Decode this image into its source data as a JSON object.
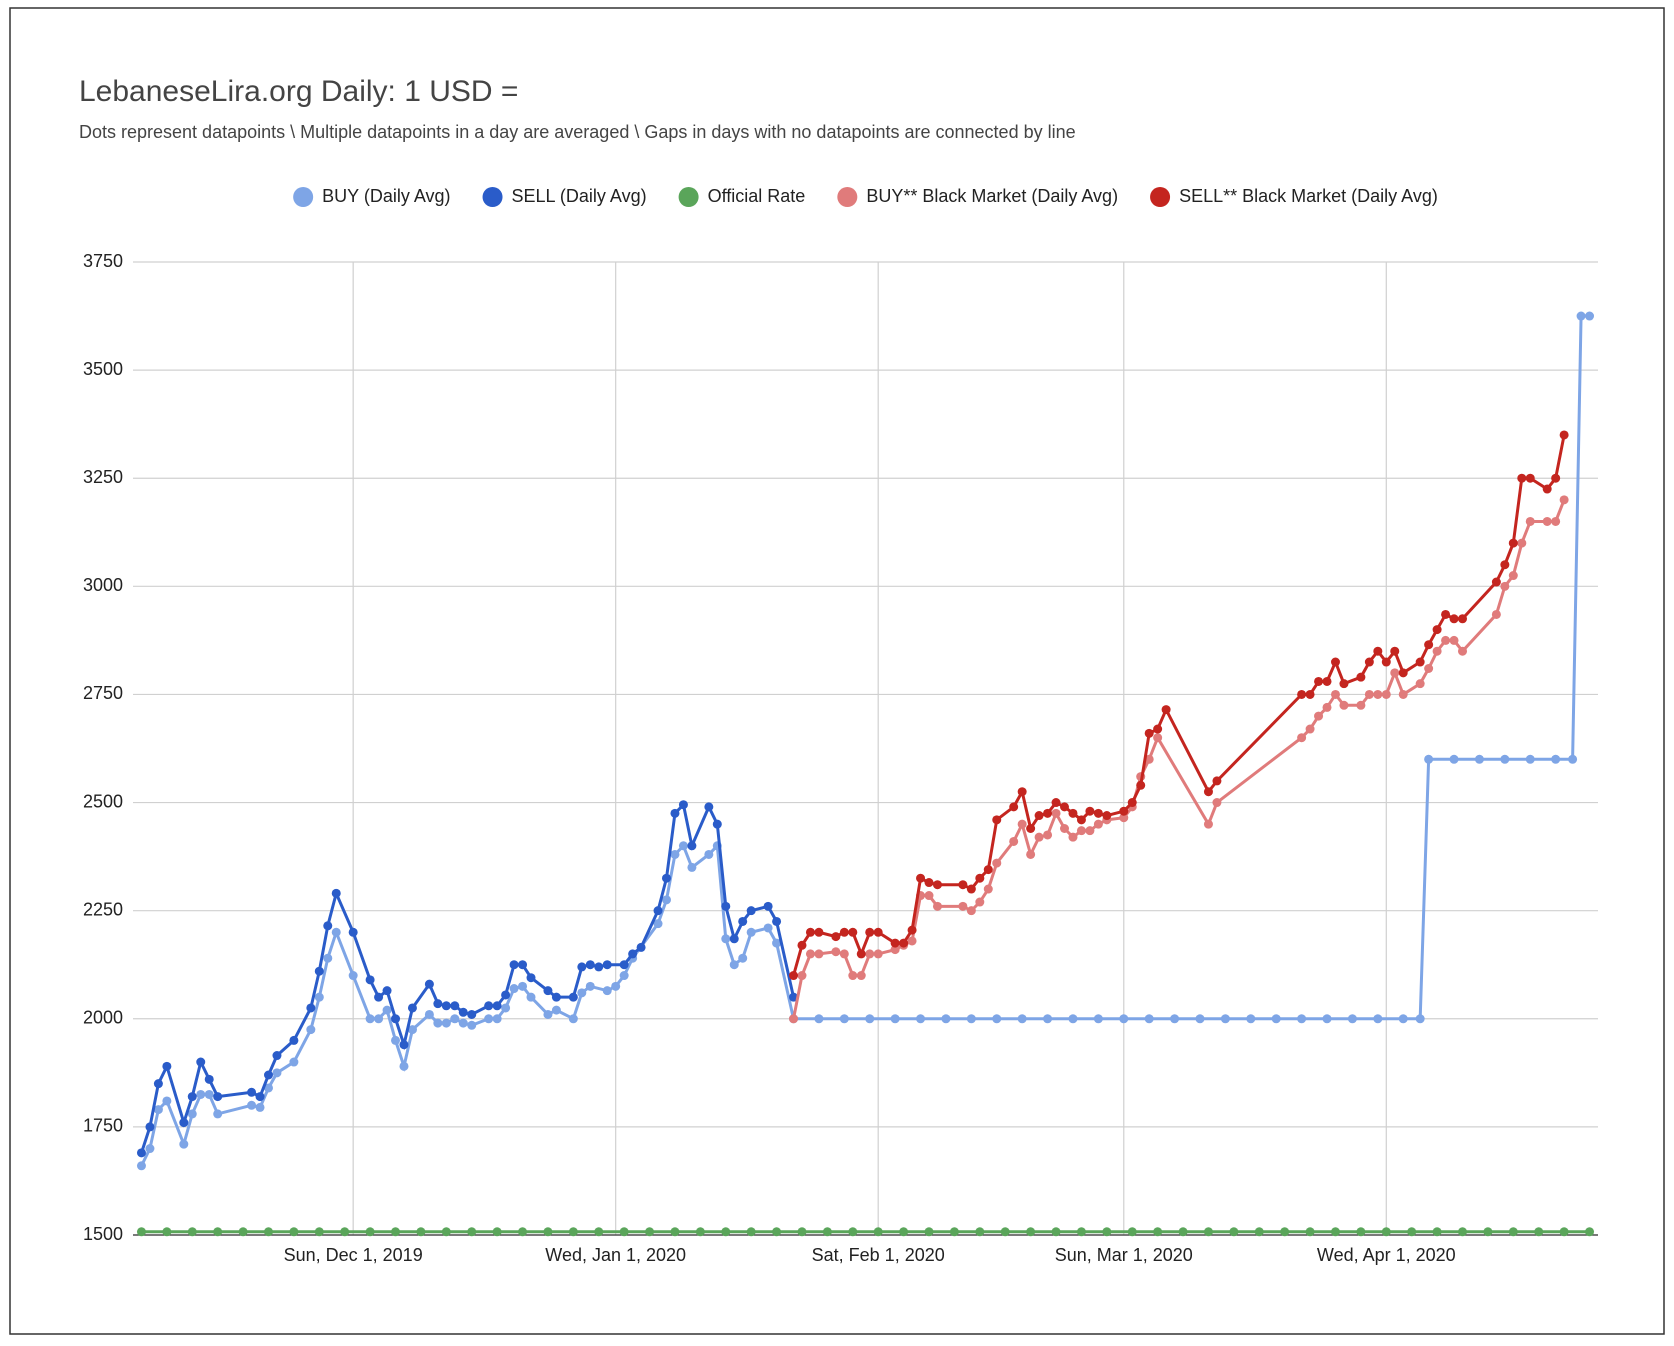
{
  "chart_data": {
    "type": "line",
    "title": "LebaneseLira.org Daily: 1 USD =",
    "subtitle": "Dots represent datapoints \\ Multiple datapoints in a day are averaged \\ Gaps in days with no datapoints are connected by line",
    "xlim": [
      "2019-11-05",
      "2020-04-26"
    ],
    "xticks": [
      {
        "value": "2019-12-01",
        "label": "Sun, Dec 1, 2019"
      },
      {
        "value": "2020-01-01",
        "label": "Wed, Jan 1, 2020"
      },
      {
        "value": "2020-02-01",
        "label": "Sat, Feb 1, 2020"
      },
      {
        "value": "2020-03-01",
        "label": "Sun, Mar 1, 2020"
      },
      {
        "value": "2020-04-01",
        "label": "Wed, Apr 1, 2020"
      }
    ],
    "ylim": [
      1500,
      3750
    ],
    "yticks": [
      1500,
      1750,
      2000,
      2250,
      2500,
      2750,
      3000,
      3250,
      3500,
      3750
    ],
    "grid": true,
    "legend": "top",
    "series": [
      {
        "name": "BUY (Daily Avg)",
        "color": "#7ea5e6",
        "x": [
          "2019-11-06",
          "2019-11-07",
          "2019-11-08",
          "2019-11-09",
          "2019-11-11",
          "2019-11-12",
          "2019-11-13",
          "2019-11-14",
          "2019-11-15",
          "2019-11-19",
          "2019-11-20",
          "2019-11-21",
          "2019-11-22",
          "2019-11-24",
          "2019-11-26",
          "2019-11-27",
          "2019-11-28",
          "2019-11-29",
          "2019-12-01",
          "2019-12-03",
          "2019-12-04",
          "2019-12-05",
          "2019-12-06",
          "2019-12-07",
          "2019-12-08",
          "2019-12-10",
          "2019-12-11",
          "2019-12-12",
          "2019-12-13",
          "2019-12-14",
          "2019-12-15",
          "2019-12-17",
          "2019-12-18",
          "2019-12-19",
          "2019-12-20",
          "2019-12-21",
          "2019-12-22",
          "2019-12-24",
          "2019-12-25",
          "2019-12-27",
          "2019-12-28",
          "2019-12-29",
          "2019-12-31",
          "2020-01-01",
          "2020-01-02",
          "2020-01-03",
          "2020-01-06",
          "2020-01-07",
          "2020-01-08",
          "2020-01-09",
          "2020-01-10",
          "2020-01-12",
          "2020-01-13",
          "2020-01-14",
          "2020-01-15",
          "2020-01-16",
          "2020-01-17",
          "2020-01-19",
          "2020-01-20",
          "2020-01-22",
          "2020-01-25",
          "2020-01-28",
          "2020-01-31",
          "2020-02-03",
          "2020-02-06",
          "2020-02-09",
          "2020-02-12",
          "2020-02-15",
          "2020-02-18",
          "2020-02-21",
          "2020-02-24",
          "2020-02-27",
          "2020-03-01",
          "2020-03-04",
          "2020-03-07",
          "2020-03-10",
          "2020-03-13",
          "2020-03-16",
          "2020-03-19",
          "2020-03-22",
          "2020-03-25",
          "2020-03-28",
          "2020-03-31",
          "2020-04-03",
          "2020-04-05",
          "2020-04-06",
          "2020-04-09",
          "2020-04-12",
          "2020-04-15",
          "2020-04-18",
          "2020-04-21",
          "2020-04-23",
          "2020-04-24",
          "2020-04-25"
        ],
        "values": [
          1660,
          1700,
          1790,
          1810,
          1710,
          1780,
          1825,
          1825,
          1780,
          1800,
          1795,
          1840,
          1875,
          1900,
          1975,
          2050,
          2140,
          2200,
          2100,
          2000,
          2000,
          2020,
          1950,
          1890,
          1975,
          2010,
          1990,
          1990,
          2000,
          1990,
          1985,
          2000,
          2000,
          2025,
          2070,
          2075,
          2050,
          2010,
          2020,
          2000,
          2060,
          2075,
          2065,
          2075,
          2100,
          2140,
          2220,
          2275,
          2380,
          2400,
          2350,
          2380,
          2400,
          2185,
          2125,
          2140,
          2200,
          2210,
          2175,
          2000,
          2000,
          2000,
          2000,
          2000,
          2000,
          2000,
          2000,
          2000,
          2000,
          2000,
          2000,
          2000,
          2000,
          2000,
          2000,
          2000,
          2000,
          2000,
          2000,
          2000,
          2000,
          2000,
          2000,
          2000,
          2000,
          2600,
          2600,
          2600,
          2600,
          2600,
          2600,
          2600,
          3625,
          3625
        ]
      },
      {
        "name": "SELL (Daily Avg)",
        "color": "#2a5cc9",
        "x": [
          "2019-11-06",
          "2019-11-07",
          "2019-11-08",
          "2019-11-09",
          "2019-11-11",
          "2019-11-12",
          "2019-11-13",
          "2019-11-14",
          "2019-11-15",
          "2019-11-19",
          "2019-11-20",
          "2019-11-21",
          "2019-11-22",
          "2019-11-24",
          "2019-11-26",
          "2019-11-27",
          "2019-11-28",
          "2019-11-29",
          "2019-12-01",
          "2019-12-03",
          "2019-12-04",
          "2019-12-05",
          "2019-12-06",
          "2019-12-07",
          "2019-12-08",
          "2019-12-10",
          "2019-12-11",
          "2019-12-12",
          "2019-12-13",
          "2019-12-14",
          "2019-12-15",
          "2019-12-17",
          "2019-12-18",
          "2019-12-19",
          "2019-12-20",
          "2019-12-21",
          "2019-12-22",
          "2019-12-24",
          "2019-12-25",
          "2019-12-27",
          "2019-12-28",
          "2019-12-29",
          "2019-12-30",
          "2019-12-31",
          "2020-01-02",
          "2020-01-03",
          "2020-01-04",
          "2020-01-06",
          "2020-01-07",
          "2020-01-08",
          "2020-01-09",
          "2020-01-10",
          "2020-01-12",
          "2020-01-13",
          "2020-01-14",
          "2020-01-15",
          "2020-01-16",
          "2020-01-17",
          "2020-01-19",
          "2020-01-20",
          "2020-01-22"
        ],
        "values": [
          1690,
          1750,
          1850,
          1890,
          1760,
          1820,
          1900,
          1860,
          1820,
          1830,
          1820,
          1870,
          1915,
          1950,
          2025,
          2110,
          2215,
          2290,
          2200,
          2090,
          2050,
          2065,
          2000,
          1940,
          2025,
          2080,
          2035,
          2030,
          2030,
          2015,
          2010,
          2030,
          2030,
          2055,
          2125,
          2125,
          2095,
          2065,
          2050,
          2050,
          2120,
          2125,
          2120,
          2125,
          2125,
          2150,
          2165,
          2250,
          2325,
          2475,
          2495,
          2400,
          2490,
          2450,
          2260,
          2185,
          2225,
          2250,
          2260,
          2225,
          2050
        ]
      },
      {
        "name": "Official Rate",
        "color": "#5aa55a",
        "x": [
          "2019-11-06",
          "2019-11-09",
          "2019-11-12",
          "2019-11-15",
          "2019-11-18",
          "2019-11-21",
          "2019-11-24",
          "2019-11-27",
          "2019-11-30",
          "2019-12-03",
          "2019-12-06",
          "2019-12-09",
          "2019-12-12",
          "2019-12-15",
          "2019-12-18",
          "2019-12-21",
          "2019-12-24",
          "2019-12-27",
          "2019-12-30",
          "2020-01-02",
          "2020-01-05",
          "2020-01-08",
          "2020-01-11",
          "2020-01-14",
          "2020-01-17",
          "2020-01-20",
          "2020-01-23",
          "2020-01-26",
          "2020-01-29",
          "2020-02-01",
          "2020-02-04",
          "2020-02-07",
          "2020-02-10",
          "2020-02-13",
          "2020-02-16",
          "2020-02-19",
          "2020-02-22",
          "2020-02-25",
          "2020-02-28",
          "2020-03-02",
          "2020-03-05",
          "2020-03-08",
          "2020-03-11",
          "2020-03-14",
          "2020-03-17",
          "2020-03-20",
          "2020-03-23",
          "2020-03-26",
          "2020-03-29",
          "2020-04-01",
          "2020-04-04",
          "2020-04-07",
          "2020-04-10",
          "2020-04-13",
          "2020-04-16",
          "2020-04-19",
          "2020-04-22",
          "2020-04-25"
        ],
        "values": [
          1507.5,
          1507.5,
          1507.5,
          1507.5,
          1507.5,
          1507.5,
          1507.5,
          1507.5,
          1507.5,
          1507.5,
          1507.5,
          1507.5,
          1507.5,
          1507.5,
          1507.5,
          1507.5,
          1507.5,
          1507.5,
          1507.5,
          1507.5,
          1507.5,
          1507.5,
          1507.5,
          1507.5,
          1507.5,
          1507.5,
          1507.5,
          1507.5,
          1507.5,
          1507.5,
          1507.5,
          1507.5,
          1507.5,
          1507.5,
          1507.5,
          1507.5,
          1507.5,
          1507.5,
          1507.5,
          1507.5,
          1507.5,
          1507.5,
          1507.5,
          1507.5,
          1507.5,
          1507.5,
          1507.5,
          1507.5,
          1507.5,
          1507.5,
          1507.5,
          1507.5,
          1507.5,
          1507.5,
          1507.5,
          1507.5,
          1507.5,
          1507.5
        ]
      },
      {
        "name": "BUY** Black Market (Daily Avg)",
        "color": "#e07b7b",
        "x": [
          "2020-01-22",
          "2020-01-23",
          "2020-01-24",
          "2020-01-25",
          "2020-01-27",
          "2020-01-28",
          "2020-01-29",
          "2020-01-30",
          "2020-01-31",
          "2020-02-01",
          "2020-02-03",
          "2020-02-04",
          "2020-02-05",
          "2020-02-06",
          "2020-02-07",
          "2020-02-08",
          "2020-02-11",
          "2020-02-12",
          "2020-02-13",
          "2020-02-14",
          "2020-02-15",
          "2020-02-17",
          "2020-02-18",
          "2020-02-19",
          "2020-02-20",
          "2020-02-21",
          "2020-02-22",
          "2020-02-23",
          "2020-02-24",
          "2020-02-25",
          "2020-02-26",
          "2020-02-27",
          "2020-02-28",
          "2020-03-01",
          "2020-03-02",
          "2020-03-03",
          "2020-03-04",
          "2020-03-05",
          "2020-03-11",
          "2020-03-12",
          "2020-03-22",
          "2020-03-23",
          "2020-03-24",
          "2020-03-25",
          "2020-03-26",
          "2020-03-27",
          "2020-03-29",
          "2020-03-30",
          "2020-03-31",
          "2020-04-01",
          "2020-04-02",
          "2020-04-03",
          "2020-04-05",
          "2020-04-06",
          "2020-04-07",
          "2020-04-08",
          "2020-04-09",
          "2020-04-10",
          "2020-04-14",
          "2020-04-15",
          "2020-04-16",
          "2020-04-17",
          "2020-04-18",
          "2020-04-20",
          "2020-04-21",
          "2020-04-22"
        ],
        "values": [
          2000,
          2100,
          2150,
          2150,
          2155,
          2150,
          2100,
          2100,
          2150,
          2150,
          2160,
          2170,
          2180,
          2285,
          2285,
          2260,
          2260,
          2250,
          2270,
          2300,
          2360,
          2410,
          2450,
          2380,
          2420,
          2425,
          2475,
          2440,
          2420,
          2435,
          2435,
          2450,
          2460,
          2465,
          2490,
          2560,
          2600,
          2650,
          2450,
          2500,
          2650,
          2670,
          2700,
          2720,
          2750,
          2725,
          2725,
          2750,
          2750,
          2750,
          2800,
          2750,
          2775,
          2810,
          2850,
          2875,
          2875,
          2850,
          2935,
          3000,
          3025,
          3100,
          3150,
          3150,
          3150,
          3200
        ]
      },
      {
        "name": "SELL** Black Market (Daily Avg)",
        "color": "#c4251f",
        "x": [
          "2020-01-22",
          "2020-01-23",
          "2020-01-24",
          "2020-01-25",
          "2020-01-27",
          "2020-01-28",
          "2020-01-29",
          "2020-01-30",
          "2020-01-31",
          "2020-02-01",
          "2020-02-03",
          "2020-02-04",
          "2020-02-05",
          "2020-02-06",
          "2020-02-07",
          "2020-02-08",
          "2020-02-11",
          "2020-02-12",
          "2020-02-13",
          "2020-02-14",
          "2020-02-15",
          "2020-02-17",
          "2020-02-18",
          "2020-02-19",
          "2020-02-20",
          "2020-02-21",
          "2020-02-22",
          "2020-02-23",
          "2020-02-24",
          "2020-02-25",
          "2020-02-26",
          "2020-02-27",
          "2020-02-28",
          "2020-03-01",
          "2020-03-02",
          "2020-03-03",
          "2020-03-04",
          "2020-03-05",
          "2020-03-06",
          "2020-03-11",
          "2020-03-12",
          "2020-03-22",
          "2020-03-23",
          "2020-03-24",
          "2020-03-25",
          "2020-03-26",
          "2020-03-27",
          "2020-03-29",
          "2020-03-30",
          "2020-03-31",
          "2020-04-01",
          "2020-04-02",
          "2020-04-03",
          "2020-04-05",
          "2020-04-06",
          "2020-04-07",
          "2020-04-08",
          "2020-04-09",
          "2020-04-10",
          "2020-04-14",
          "2020-04-15",
          "2020-04-16",
          "2020-04-17",
          "2020-04-18",
          "2020-04-20",
          "2020-04-21",
          "2020-04-22"
        ],
        "values": [
          2100,
          2170,
          2200,
          2200,
          2190,
          2200,
          2200,
          2150,
          2200,
          2200,
          2175,
          2175,
          2205,
          2325,
          2315,
          2310,
          2310,
          2300,
          2325,
          2345,
          2460,
          2490,
          2525,
          2440,
          2470,
          2475,
          2500,
          2490,
          2475,
          2460,
          2480,
          2475,
          2470,
          2480,
          2500,
          2540,
          2660,
          2670,
          2715,
          2525,
          2550,
          2750,
          2750,
          2780,
          2780,
          2825,
          2775,
          2790,
          2825,
          2850,
          2825,
          2850,
          2800,
          2825,
          2865,
          2900,
          2935,
          2925,
          2925,
          3010,
          3050,
          3100,
          3250,
          3250,
          3225,
          3250,
          3350
        ]
      }
    ]
  }
}
